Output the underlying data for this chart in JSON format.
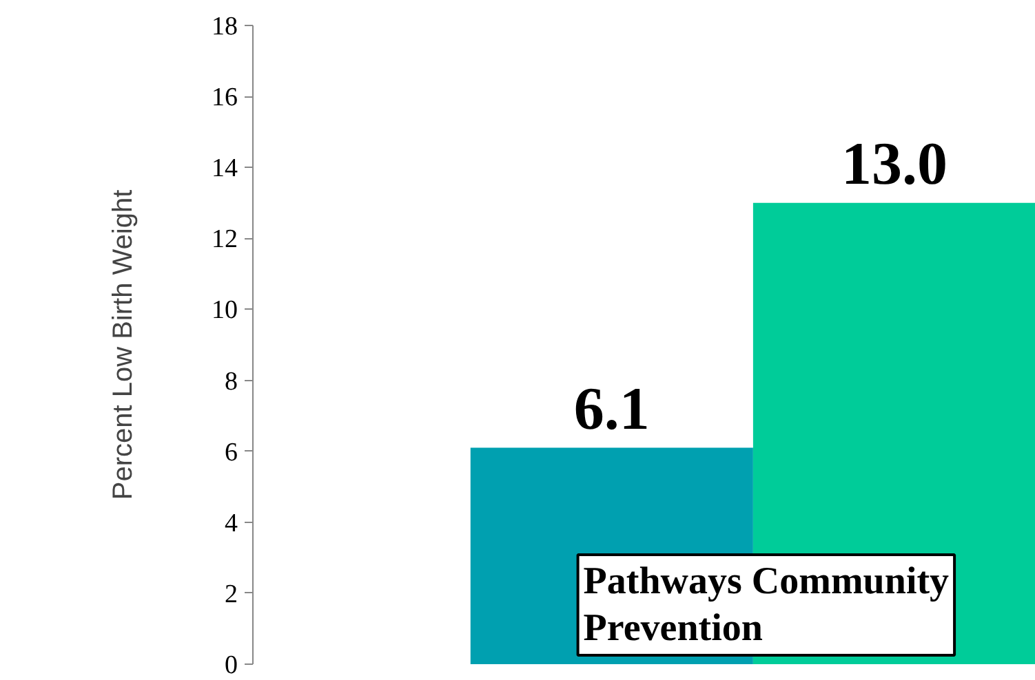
{
  "chart_data": {
    "type": "bar",
    "ylabel": "Percent Low Birth Weight",
    "categories": [
      null,
      null
    ],
    "series": [
      {
        "colors": [
          "#00a0b0",
          "#00cc99"
        ],
        "values": [
          6.1,
          13.0
        ],
        "value_labels": [
          "6.1",
          "13.0"
        ]
      }
    ],
    "ylim": [
      0,
      18
    ],
    "yticks": [
      0,
      2,
      4,
      6,
      8,
      10,
      12,
      14,
      16,
      18
    ],
    "grid": false,
    "annotations": [
      "Pathways Community\nPrevention"
    ]
  }
}
